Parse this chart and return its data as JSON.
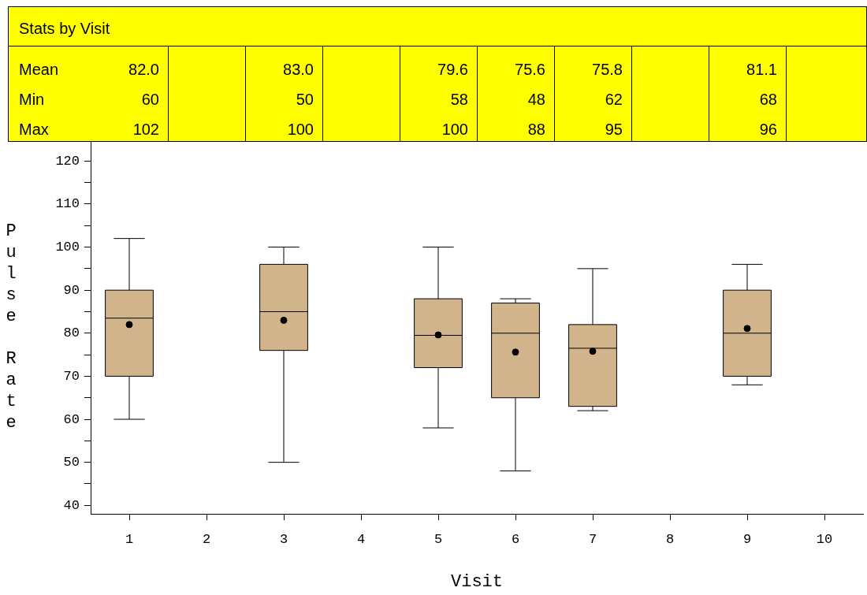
{
  "chart_data": {
    "type": "box",
    "title": "Stats by Visit",
    "xlabel": "Visit",
    "ylabel": "Pulse Rate",
    "categories": [
      "1",
      "2",
      "3",
      "4",
      "5",
      "6",
      "7",
      "8",
      "9",
      "10"
    ],
    "series": [
      {
        "color": "#d2b48c",
        "boxes": [
          {
            "low": 60,
            "q1": 70,
            "median": 83.5,
            "q3": 90,
            "high": 102,
            "mean": 82.0
          },
          null,
          {
            "low": 50,
            "q1": 76,
            "median": 85,
            "q3": 96,
            "high": 100,
            "mean": 83.0
          },
          null,
          {
            "low": 58,
            "q1": 72,
            "median": 79.5,
            "q3": 88,
            "high": 100,
            "mean": 79.6
          },
          {
            "low": 48,
            "q1": 65,
            "median": 80,
            "q3": 87,
            "high": 88,
            "mean": 75.6
          },
          {
            "low": 62,
            "q1": 63,
            "median": 76.5,
            "q3": 82,
            "high": 95,
            "mean": 75.8
          },
          null,
          {
            "low": 68,
            "q1": 70,
            "median": 80,
            "q3": 90,
            "high": 96,
            "mean": 81.1
          },
          null
        ],
        "value_labels": [
          [
            "82.0",
            "60",
            "102"
          ],
          null,
          [
            "83.0",
            "50",
            "100"
          ],
          null,
          [
            "79.6",
            "58",
            "100"
          ],
          [
            "75.6",
            "48",
            "88"
          ],
          [
            "75.8",
            "62",
            "95"
          ],
          null,
          [
            "81.1",
            "68",
            "96"
          ],
          null
        ]
      }
    ],
    "annotations": [
      "Mean",
      "Min",
      "Max"
    ],
    "marker": "circle",
    "grid": false,
    "legend": false,
    "ylim": [
      38,
      125
    ],
    "yticks": [
      40,
      {
        "value": 45,
        "label": null
      },
      50,
      {
        "value": 55,
        "label": null
      },
      60,
      {
        "value": 65,
        "label": null
      },
      70,
      {
        "value": 75,
        "label": null
      },
      80,
      {
        "value": 85,
        "label": null
      },
      90,
      {
        "value": 95,
        "label": null
      },
      100,
      {
        "value": 105,
        "label": null
      },
      110,
      {
        "value": 115,
        "label": null
      },
      120
    ]
  }
}
